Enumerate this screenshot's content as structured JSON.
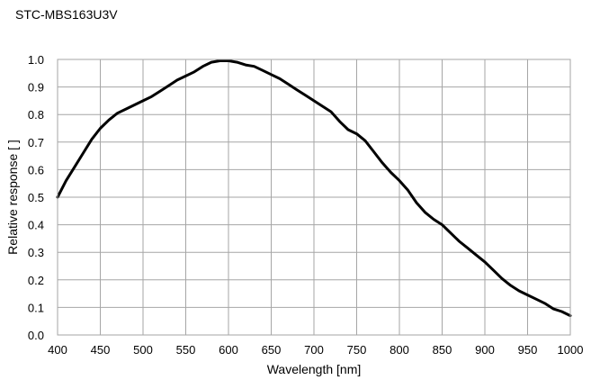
{
  "chart_data": {
    "type": "line",
    "title": "STC-MBS163U3V",
    "xlabel": "Wavelength [nm]",
    "ylabel": "Relative response [ ]",
    "xlim": [
      400,
      1000
    ],
    "ylim": [
      0,
      1
    ],
    "x_ticks": [
      400,
      450,
      500,
      550,
      600,
      650,
      700,
      750,
      800,
      850,
      900,
      950,
      1000
    ],
    "y_ticks": [
      0,
      0.1,
      0.2,
      0.3,
      0.4,
      0.5,
      0.6,
      0.7,
      0.8,
      0.9,
      1
    ],
    "x_tick_labels": [
      "400",
      "450",
      "500",
      "550",
      "600",
      "650",
      "700",
      "750",
      "800",
      "850",
      "900",
      "950",
      "1000"
    ],
    "y_tick_labels": [
      "0.0",
      "0.1",
      "0.2",
      "0.3",
      "0.4",
      "0.5",
      "0.6",
      "0.7",
      "0.8",
      "0.9",
      "1.0"
    ],
    "grid": true,
    "legend": false,
    "line_color": "#000000",
    "grid_color": "#a6a6a6",
    "series": [
      {
        "x": [
          400,
          410,
          420,
          430,
          440,
          450,
          460,
          470,
          480,
          490,
          500,
          510,
          520,
          530,
          540,
          550,
          560,
          570,
          580,
          590,
          600,
          610,
          620,
          630,
          640,
          650,
          660,
          670,
          680,
          690,
          700,
          710,
          720,
          730,
          740,
          750,
          760,
          770,
          780,
          790,
          800,
          810,
          820,
          830,
          840,
          850,
          860,
          870,
          880,
          890,
          900,
          910,
          920,
          930,
          940,
          950,
          960,
          970,
          980,
          990,
          1000
        ],
        "y": [
          0.5,
          0.56,
          0.61,
          0.66,
          0.71,
          0.75,
          0.78,
          0.805,
          0.82,
          0.835,
          0.85,
          0.865,
          0.885,
          0.905,
          0.925,
          0.94,
          0.955,
          0.975,
          0.99,
          0.995,
          0.995,
          0.99,
          0.98,
          0.975,
          0.96,
          0.945,
          0.93,
          0.91,
          0.89,
          0.87,
          0.85,
          0.83,
          0.81,
          0.775,
          0.745,
          0.73,
          0.705,
          0.665,
          0.625,
          0.59,
          0.56,
          0.525,
          0.48,
          0.445,
          0.42,
          0.4,
          0.37,
          0.34,
          0.315,
          0.29,
          0.265,
          0.235,
          0.205,
          0.18,
          0.16,
          0.145,
          0.13,
          0.115,
          0.095,
          0.085,
          0.07
        ]
      }
    ]
  }
}
